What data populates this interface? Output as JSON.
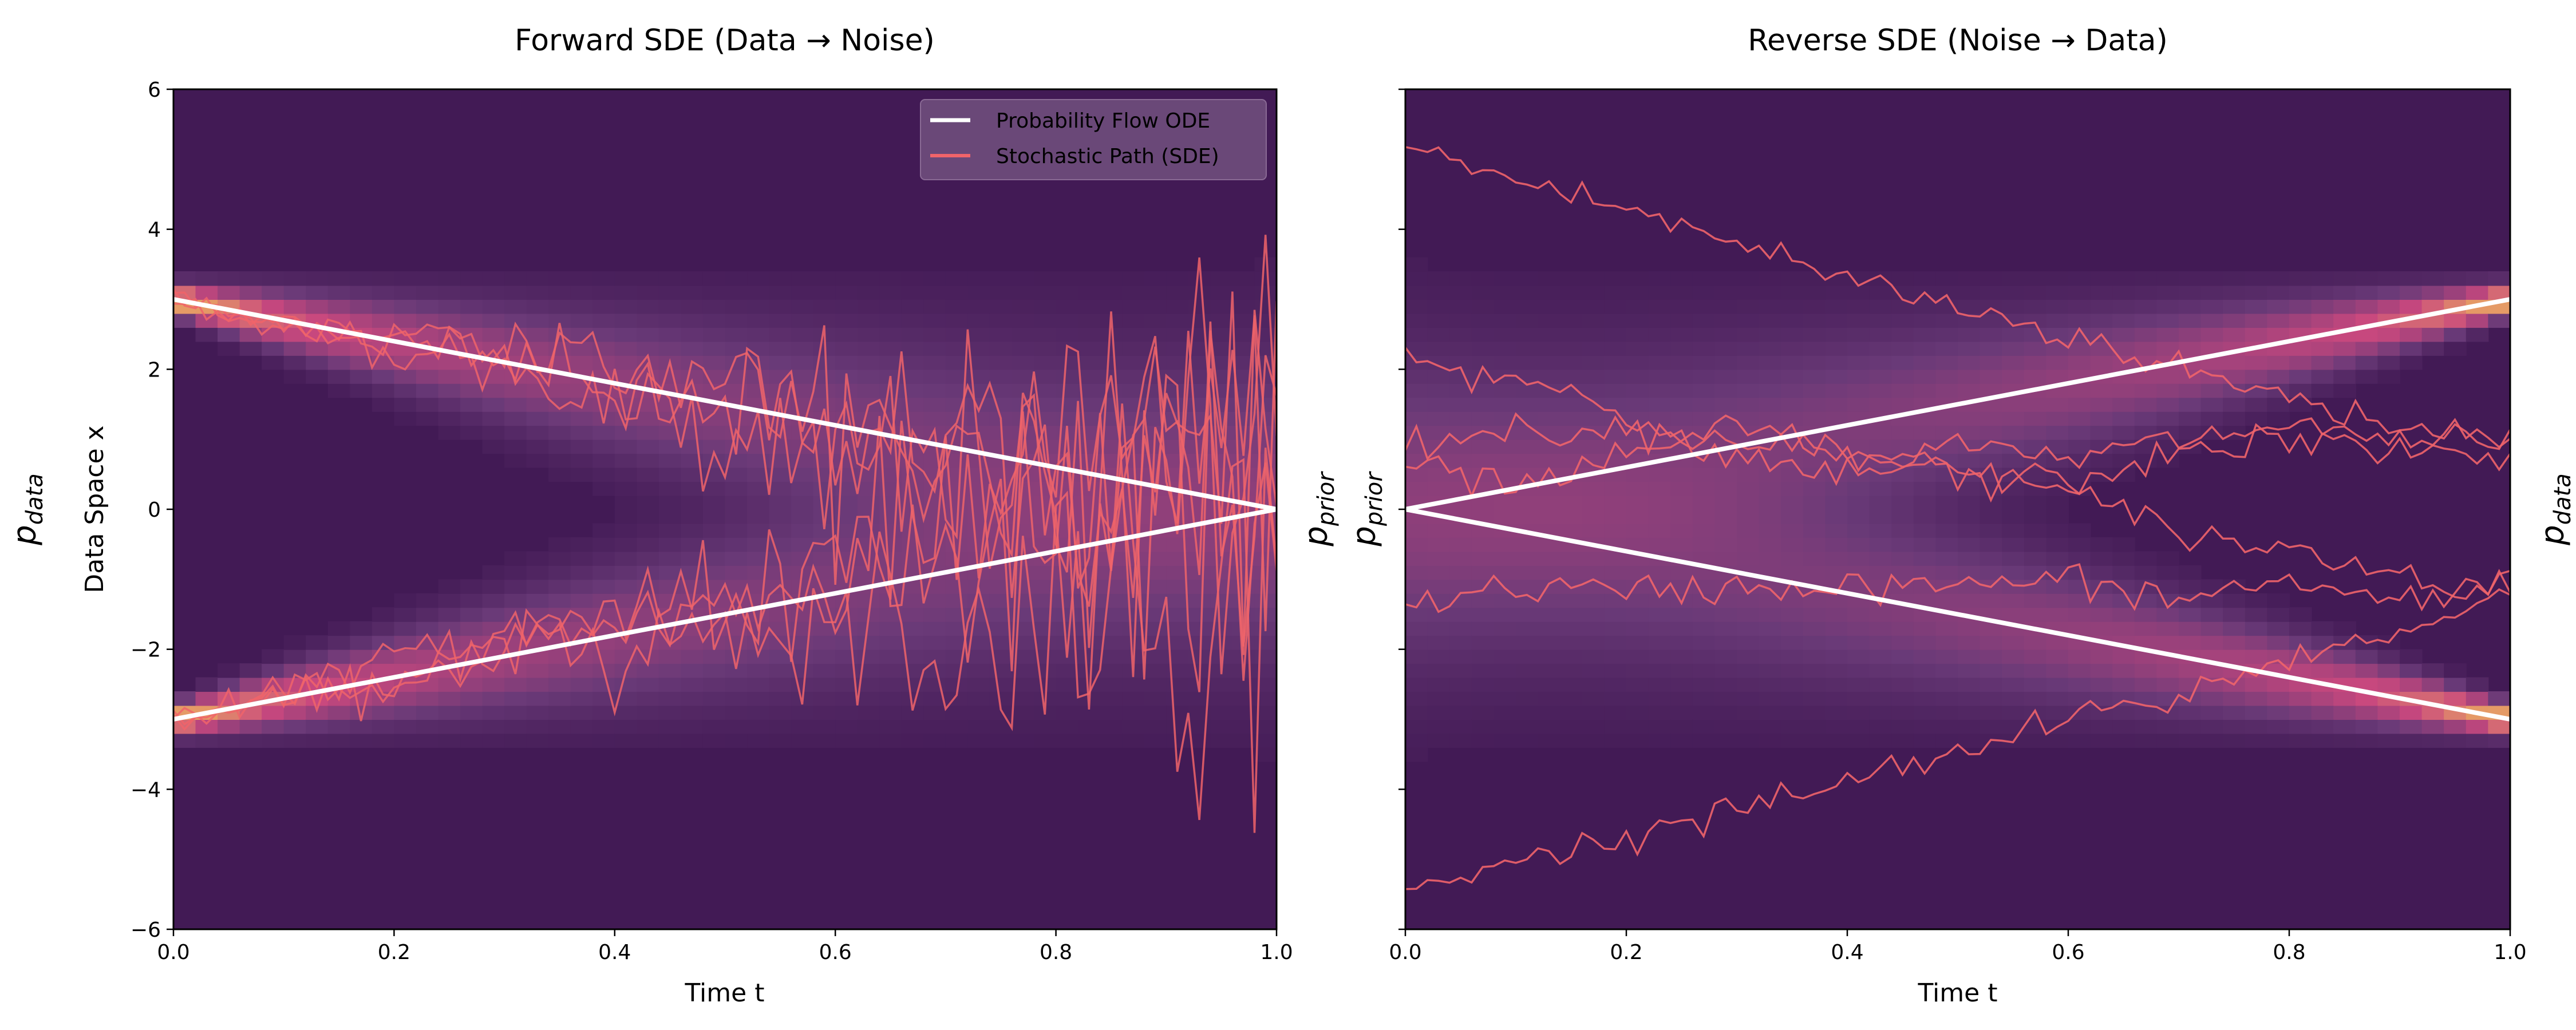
{
  "chart_data": [
    {
      "type": "line",
      "title": "Forward SDE (Data → Noise)",
      "xlabel": "Time t",
      "ylabel": "Data Space x",
      "left_label": "p_data",
      "right_label": "p_prior",
      "xlim": [
        0,
        1
      ],
      "ylim": [
        -6,
        6
      ],
      "xticks": [
        "0.0",
        "0.2",
        "0.4",
        "0.6",
        "0.8",
        "1.0"
      ],
      "yticks": [
        "−6",
        "−4",
        "−2",
        "0",
        "2",
        "4",
        "6"
      ],
      "grid": false,
      "legend": {
        "placement": "top-right",
        "entries": [
          "Probability Flow ODE",
          "Stochastic Path (SDE)"
        ]
      },
      "background": "density heatmap: bimodal at x = ±3 near t = 0, spreading toward t = 1",
      "ode_paths": [
        {
          "name": "Probability Flow ODE",
          "x": [
            0,
            1
          ],
          "y": [
            3,
            0
          ]
        },
        {
          "name": "Probability Flow ODE",
          "x": [
            0,
            1
          ],
          "y": [
            -3,
            0
          ]
        }
      ],
      "sde_path_starts": [
        3,
        3,
        3,
        -3,
        -3,
        -3
      ]
    },
    {
      "type": "line",
      "title": "Reverse SDE (Noise → Data)",
      "xlabel": "Time t",
      "left_label": "p_prior",
      "right_label": "p_data",
      "xlim": [
        0,
        1
      ],
      "ylim": [
        -6,
        6
      ],
      "xticks": [
        "0.0",
        "0.2",
        "0.4",
        "0.6",
        "0.8",
        "1.0"
      ],
      "grid": false,
      "background": "density heatmap: bimodal at x = ±3 near t = 1",
      "ode_paths": [
        {
          "name": "Probability Flow ODE",
          "x": [
            0,
            1
          ],
          "y": [
            0,
            3
          ]
        },
        {
          "name": "Probability Flow ODE",
          "x": [
            0,
            1
          ],
          "y": [
            0,
            -3
          ]
        }
      ],
      "sde_paths": {
        "t": [
          0,
          0.1,
          0.2,
          0.3,
          0.4,
          0.5,
          0.6,
          0.7,
          0.8,
          0.9,
          1.0
        ],
        "series": [
          [
            5.2,
            4.7,
            4.3,
            3.8,
            3.3,
            2.9,
            2.5,
            2.0,
            1.6,
            1.2,
            1.0
          ],
          [
            2.2,
            1.9,
            1.3,
            0.9,
            0.8,
            0.6,
            0.2,
            -0.3,
            -0.6,
            -0.9,
            -1.2
          ],
          [
            1.0,
            1.1,
            1.2,
            0.8,
            0.5,
            0.9,
            0.7,
            1.0,
            1.2,
            1.0,
            1.0
          ],
          [
            0.6,
            0.3,
            0.7,
            1.2,
            0.8,
            0.5,
            0.4,
            0.8,
            1.0,
            0.8,
            0.8
          ],
          [
            -1.4,
            -1.1,
            -1.2,
            -1.1,
            -1.1,
            -1.1,
            -1.0,
            -1.3,
            -1.0,
            -1.4,
            -1.0
          ],
          [
            -5.4,
            -5.0,
            -4.7,
            -4.3,
            -3.9,
            -3.5,
            -3.0,
            -2.7,
            -2.1,
            -1.8,
            -1.1
          ]
        ]
      }
    }
  ],
  "colors": {
    "background": "#421a55",
    "ode": "#ffffff",
    "sde": "#f0646a",
    "legend_bg": "#6a4878",
    "heat_low": "#421a55",
    "heat_mid": "#c9487e",
    "heat_high": "#f3c35a"
  }
}
